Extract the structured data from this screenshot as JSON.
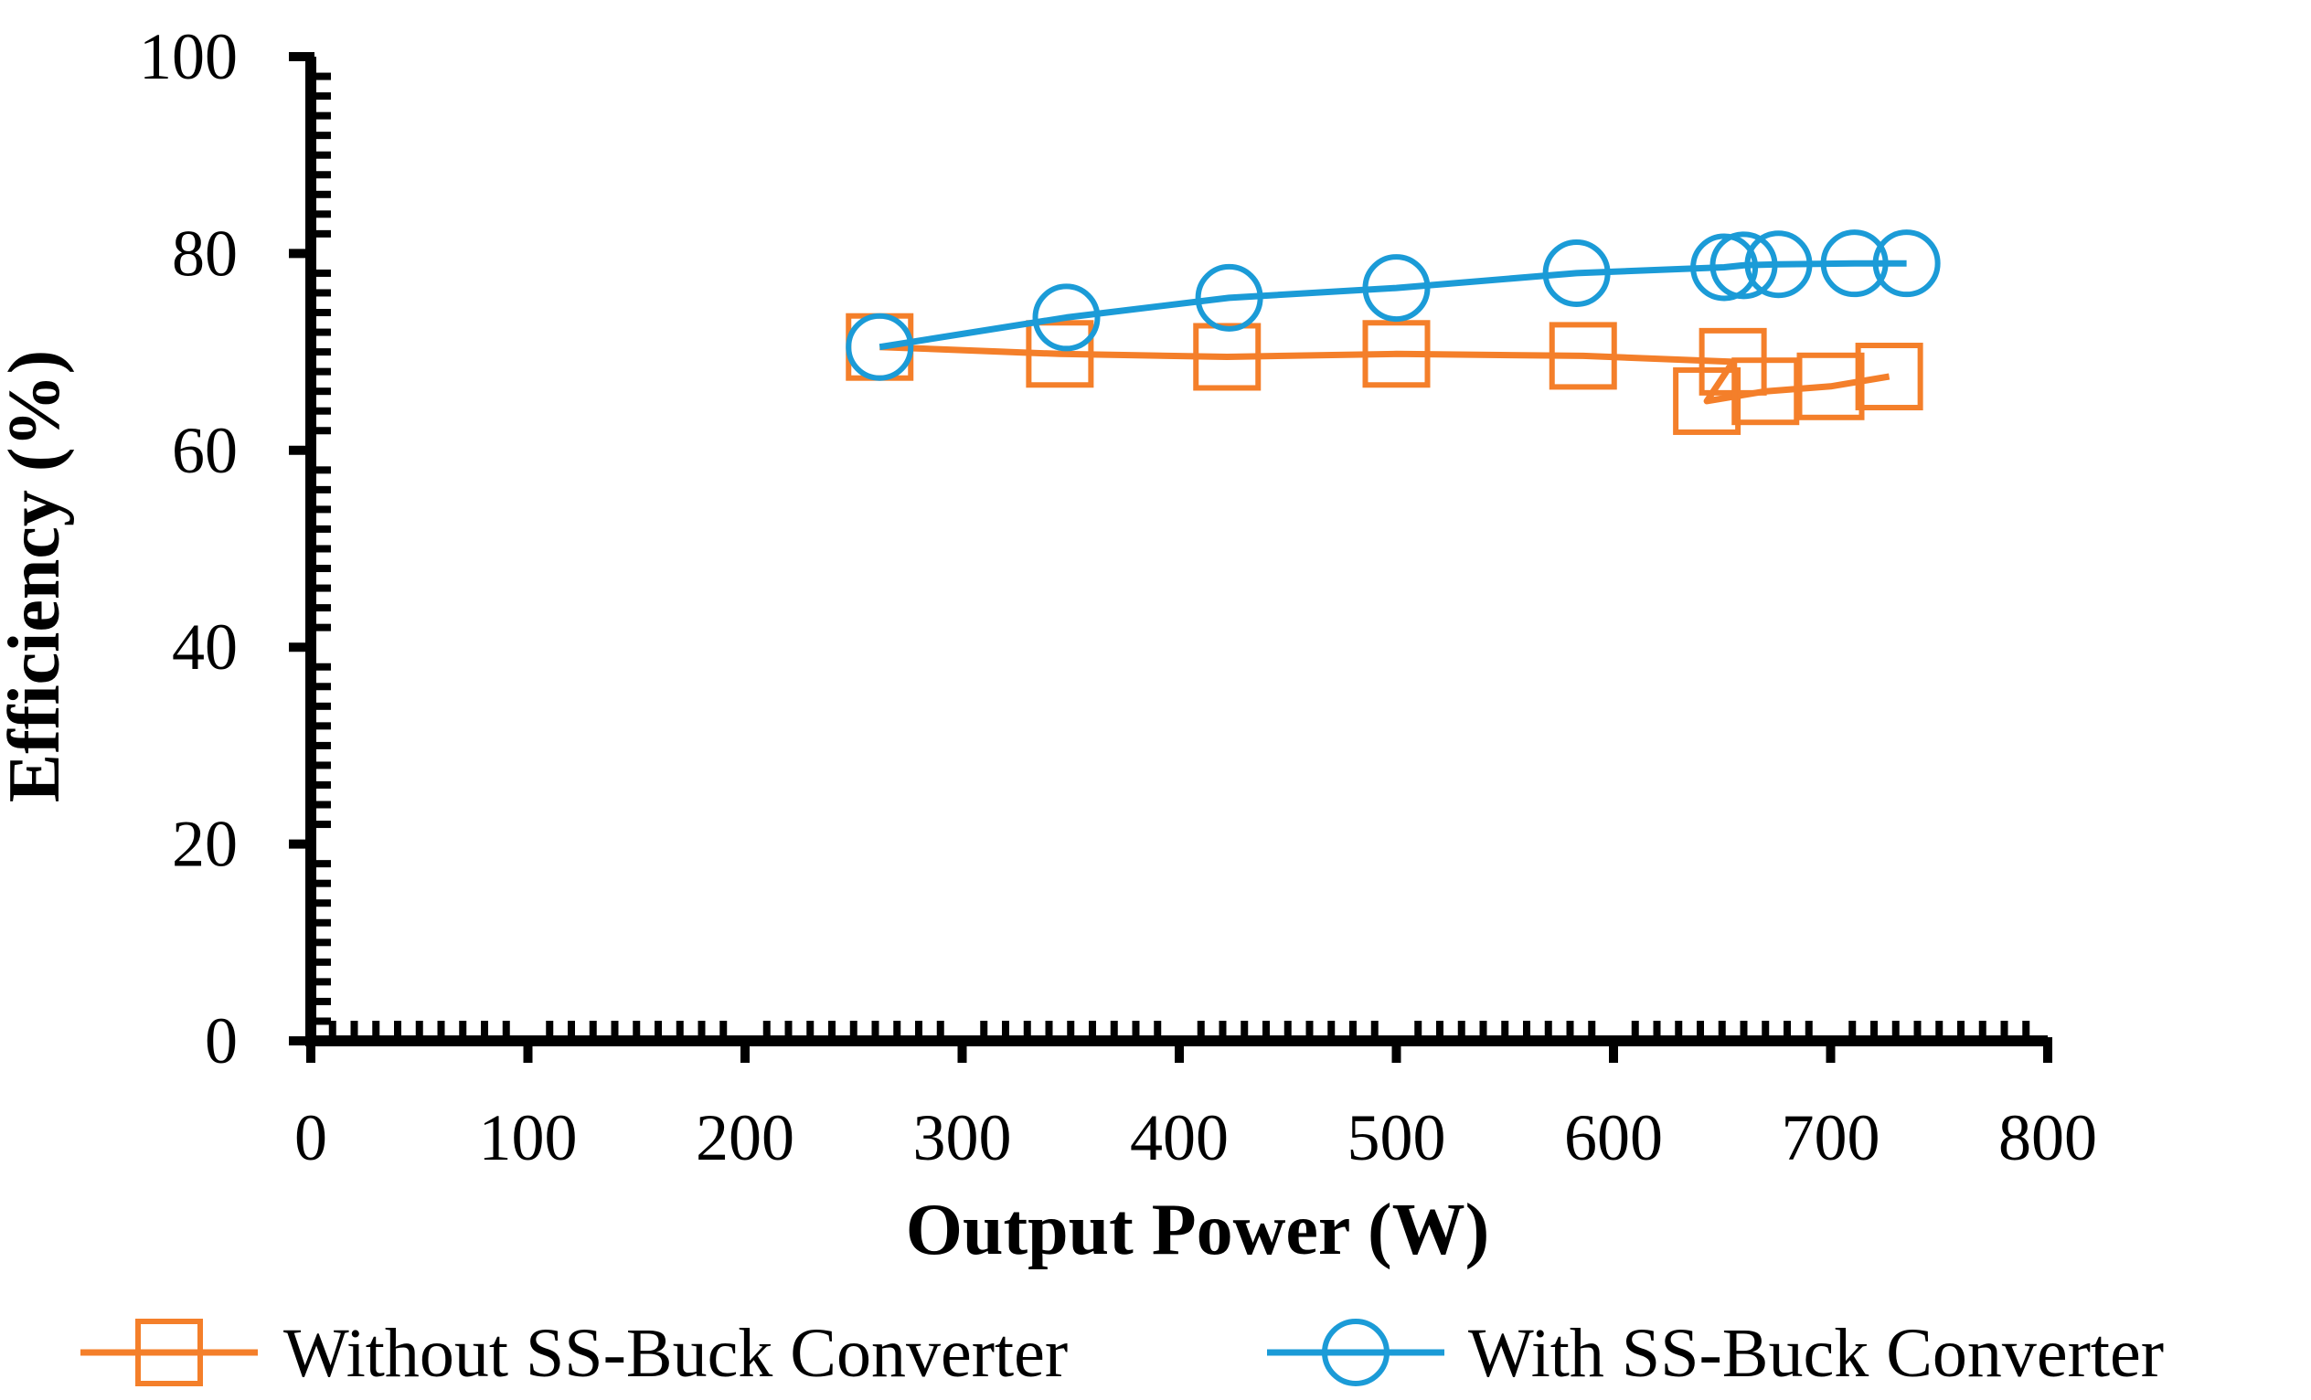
{
  "chart_data": {
    "type": "line",
    "title": "",
    "xlabel": "Output Power (W)",
    "ylabel": "Efficiency (%)",
    "xlim": [
      0,
      800
    ],
    "ylim": [
      0,
      100
    ],
    "x_ticks": [
      0,
      100,
      200,
      300,
      400,
      500,
      600,
      700,
      800
    ],
    "y_ticks": [
      0,
      20,
      40,
      60,
      80,
      100
    ],
    "x_tick_labels": [
      "0",
      "100",
      "200",
      "300",
      "400",
      "500",
      "600",
      "700",
      "800"
    ],
    "y_tick_labels": [
      "0",
      "20",
      "40",
      "60",
      "80",
      "100"
    ],
    "grid": false,
    "legend_position": "bottom",
    "series": [
      {
        "name": "Without SS-Buck Converter",
        "color": "#F47F2A",
        "marker": "square",
        "points": [
          {
            "x": 262,
            "y": 70.5
          },
          {
            "x": 345,
            "y": 69.8
          },
          {
            "x": 422,
            "y": 69.5
          },
          {
            "x": 500,
            "y": 69.8
          },
          {
            "x": 586,
            "y": 69.6
          },
          {
            "x": 655,
            "y": 69.0
          },
          {
            "x": 643,
            "y": 65.0
          },
          {
            "x": 670,
            "y": 66.0
          },
          {
            "x": 700,
            "y": 66.5
          },
          {
            "x": 727,
            "y": 67.5
          }
        ]
      },
      {
        "name": "With SS-Buck Converter",
        "color": "#1B9BD7",
        "marker": "circle",
        "points": [
          {
            "x": 262,
            "y": 70.5
          },
          {
            "x": 348,
            "y": 73.5
          },
          {
            "x": 423,
            "y": 75.5
          },
          {
            "x": 500,
            "y": 76.5
          },
          {
            "x": 583,
            "y": 78.0
          },
          {
            "x": 651,
            "y": 78.6
          },
          {
            "x": 660,
            "y": 78.8
          },
          {
            "x": 676,
            "y": 78.9
          },
          {
            "x": 711,
            "y": 79.0
          },
          {
            "x": 735,
            "y": 79.0
          }
        ]
      }
    ]
  }
}
